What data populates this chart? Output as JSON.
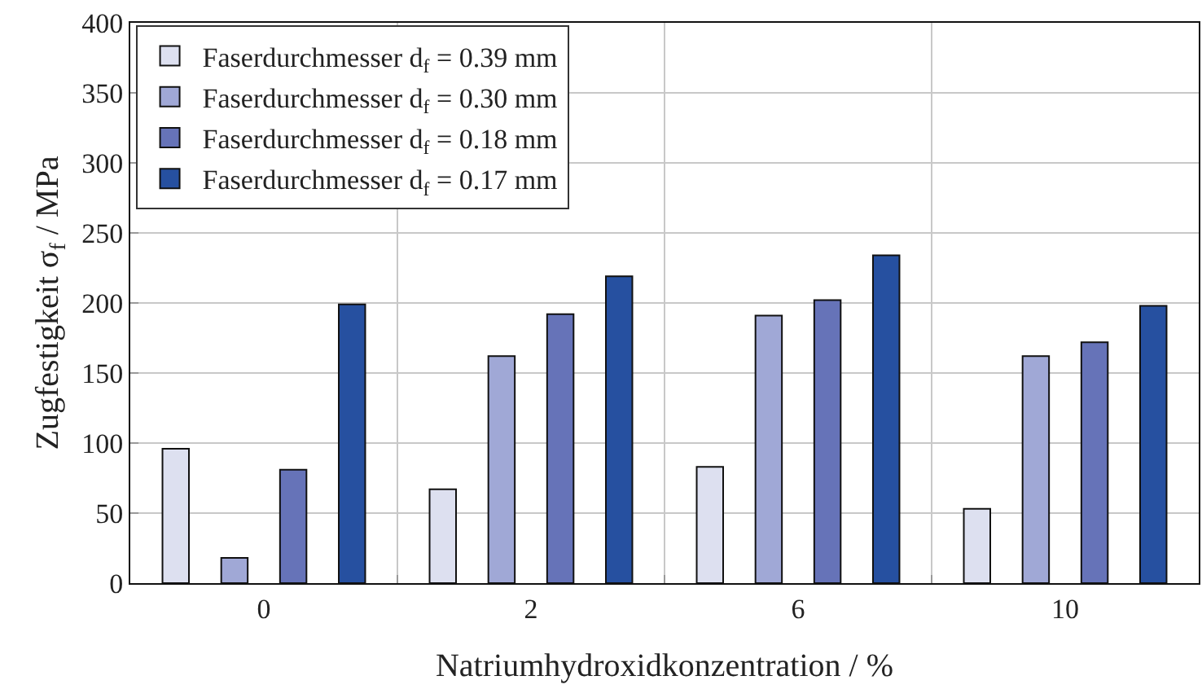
{
  "chart_data": {
    "type": "bar",
    "xlabel": "Natriumhydroxidkonzentration / %",
    "ylabel": "Zugfestigkeit σ$_{f}$ / MPa",
    "categories": [
      "0",
      "2",
      "6",
      "10"
    ],
    "series": [
      {
        "name": "Faserdurchmesser d$_{f}$ = 0.39 mm",
        "color": "#dde0f0",
        "values": [
          96,
          67,
          83,
          53
        ]
      },
      {
        "name": "Faserdurchmesser d$_{f}$ = 0.30 mm",
        "color": "#a0a8d6",
        "values": [
          18,
          162,
          191,
          162
        ]
      },
      {
        "name": "Faserdurchmesser d$_{f}$ = 0.18 mm",
        "color": "#6673b8",
        "values": [
          81,
          192,
          202,
          172
        ]
      },
      {
        "name": "Faserdurchmesser d$_{f}$ = 0.17 mm",
        "color": "#2650a0",
        "values": [
          199,
          219,
          234,
          198
        ]
      }
    ],
    "ylim": [
      0,
      400
    ],
    "yticks": [
      0,
      50,
      100,
      150,
      200,
      250,
      300,
      350,
      400
    ],
    "grid": true,
    "legend": "top left"
  }
}
